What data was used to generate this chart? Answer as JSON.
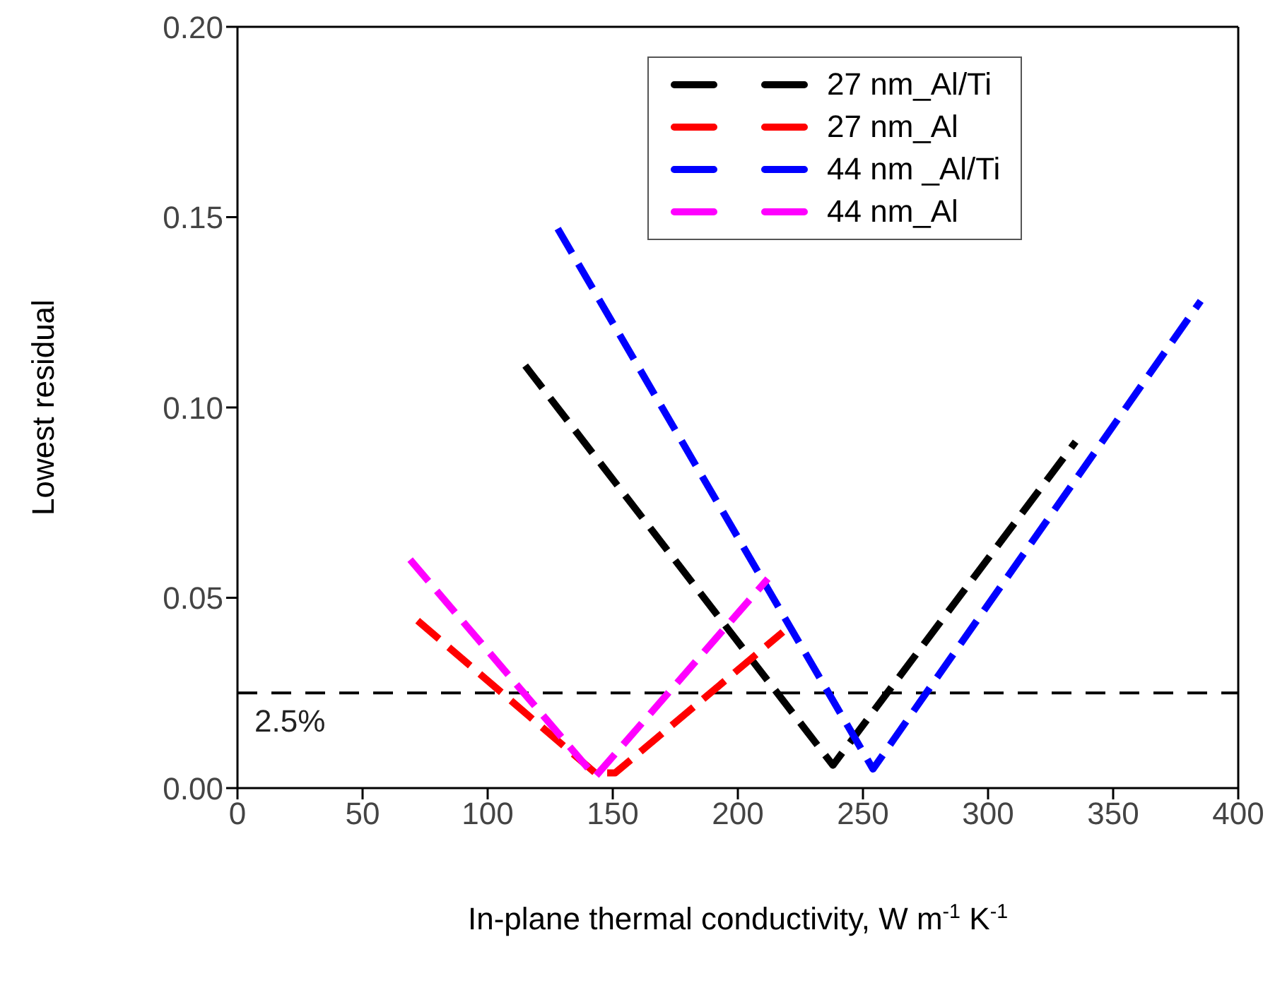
{
  "chart_data": {
    "type": "line",
    "xlabel": "In-plane thermal conductivity, W m$^{-1}$ K$^{-1}$",
    "ylabel": "Lowest residual",
    "xlim": [
      0,
      400
    ],
    "xticks": [
      0,
      50,
      100,
      150,
      200,
      250,
      300,
      350,
      400
    ],
    "ylim": [
      0,
      0.2
    ],
    "yticks": [
      {
        "value": 0,
        "label": "0.00"
      },
      {
        "value": 0.05,
        "label": "0.05"
      },
      {
        "value": 0.1,
        "label": "0.10"
      },
      {
        "value": 0.15,
        "label": "0.15"
      },
      {
        "value": 0.2,
        "label": "0.20"
      }
    ],
    "legend": "top",
    "line_style": "dashed",
    "marker": "none",
    "series": [
      {
        "name": "27 nm_Al/Ti",
        "color": "#000000",
        "x": [
          115,
          238,
          335
        ],
        "values": [
          0.111,
          0.006,
          0.091
        ]
      },
      {
        "name": "27 nm_Al",
        "color": "#ff0000",
        "x": [
          72,
          143,
          151,
          218
        ],
        "values": [
          0.044,
          0.004,
          0.004,
          0.041
        ]
      },
      {
        "name": "44 nm _Al/Ti",
        "color": "#0000ff",
        "x": [
          128,
          254,
          385
        ],
        "values": [
          0.147,
          0.005,
          0.128
        ]
      },
      {
        "name": "44 nm_Al",
        "color": "#ff00ff",
        "x": [
          69,
          143,
          212
        ],
        "values": [
          0.06,
          0.003,
          0.055
        ]
      }
    ],
    "ref_lines": [
      {
        "axis": "y",
        "value": 0.025,
        "label": "2.5%",
        "color": "#000000",
        "line_style": "dashed"
      }
    ]
  }
}
